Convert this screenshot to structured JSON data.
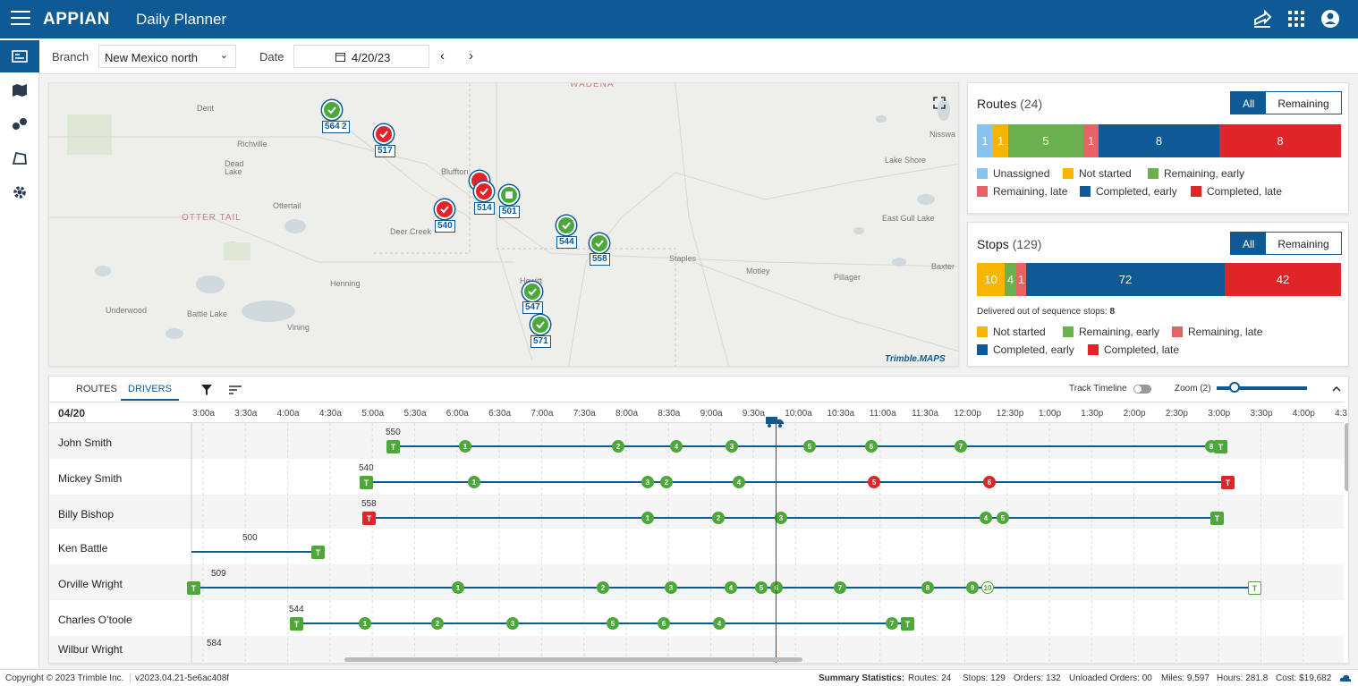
{
  "header": {
    "logo": "APPIAN",
    "title": "Daily Planner"
  },
  "filters": {
    "branch_label": "Branch",
    "branch_value": "New Mexico north",
    "date_label": "Date",
    "date_value": "4/20/23"
  },
  "map": {
    "places": [
      "WADENA",
      "Dent",
      "Richville",
      "Dead Lake",
      "OTTER TAIL",
      "Ottertail",
      "Deer Creek",
      "Bluffton",
      "Henning",
      "Underwood",
      "Battle Lake",
      "Vining",
      "Staples",
      "Motley",
      "Pillager",
      "Lake Shore",
      "East Gull Lake",
      "Nisswa",
      "Baxter",
      "Hewitt"
    ],
    "markers": [
      "564",
      "2",
      "517",
      "514",
      "501",
      "540",
      "544",
      "558",
      "547",
      "571"
    ],
    "attribution": "Trimble.MAPS"
  },
  "routes": {
    "title": "Routes",
    "count": "(24)",
    "toggle_all": "All",
    "toggle_remaining": "Remaining",
    "segments": [
      "1",
      "1",
      "5",
      "1",
      "8",
      "8"
    ],
    "legend": [
      "Unassigned",
      "Not started",
      "Remaining, early",
      "Remaining, late",
      "Completed, early",
      "Completed, late"
    ],
    "colors": [
      "#8bc4ea",
      "#f7b500",
      "#6ab04c",
      "#e86464",
      "#0d5a94",
      "#e02428"
    ]
  },
  "stops": {
    "title": "Stops",
    "count": "(129)",
    "toggle_all": "All",
    "toggle_remaining": "Remaining",
    "segments": [
      "10",
      "4",
      "1",
      "72",
      "42"
    ],
    "out_of_seq_label": "Delivered out of sequence stops:",
    "out_of_seq_value": "8",
    "legend": [
      "Not started",
      "Remaining, early",
      "Remaining, late",
      "Completed, early",
      "Completed, late"
    ]
  },
  "timeline": {
    "tab_routes": "ROUTES",
    "tab_drivers": "DRIVERS",
    "track_label": "Track Timeline",
    "zoom_label": "Zoom (2)",
    "zoom_level": 0.2,
    "date": "04/20",
    "hours": [
      "3:00a",
      "3:30a",
      "4:00a",
      "4:30a",
      "5:00a",
      "5:30a",
      "6:00a",
      "6:30a",
      "7:00a",
      "7:30a",
      "8:00a",
      "8:30a",
      "9:00a",
      "9:30a",
      "10:00a",
      "10:30a",
      "11:00a",
      "11:30a",
      "12:00p",
      "12:30p",
      "1:00p",
      "1:30p",
      "2:00p",
      "2:30p",
      "3:00p",
      "3:30p",
      "4:00p",
      "4:3"
    ],
    "drivers": [
      {
        "name": "John Smith",
        "route": "550",
        "stops": [
          "1",
          "2",
          "4",
          "3",
          "5",
          "6",
          "7"
        ],
        "end_stop": "8",
        "end": "T"
      },
      {
        "name": "Mickey Smith",
        "route": "540",
        "stops": [
          "1",
          "3",
          "2",
          "4",
          "5",
          "6"
        ],
        "end": "T"
      },
      {
        "name": "Billy Bishop",
        "route": "558",
        "stops": [
          "1",
          "2",
          "3",
          "4",
          "5"
        ],
        "end": "T"
      },
      {
        "name": "Ken Battle",
        "route": "500",
        "end": "T"
      },
      {
        "name": "Orville Wright",
        "route": "509",
        "stops": [
          "1",
          "2",
          "3",
          "4",
          "5",
          "6",
          "7",
          "8",
          "9",
          "10"
        ],
        "end": "T"
      },
      {
        "name": "Charles O’toole",
        "route": "544",
        "stops": [
          "1",
          "2",
          "3",
          "5",
          "6",
          "4",
          "7"
        ],
        "end": "T"
      },
      {
        "name": "Wilbur Wright",
        "route": "584"
      }
    ]
  },
  "footer": {
    "copyright": "Copyright © 2023 Trimble Inc.",
    "version": "v2023.04.21-5e6ac408f",
    "summary_label": "Summary Statistics:",
    "routes": "Routes: 24",
    "stops": "Stops: 129",
    "orders": "Orders: 132",
    "unloaded": "Unloaded Orders: 00",
    "miles": "Miles: 9,597",
    "hours": "Hours: 281.8",
    "cost": "Cost: $19,682"
  }
}
